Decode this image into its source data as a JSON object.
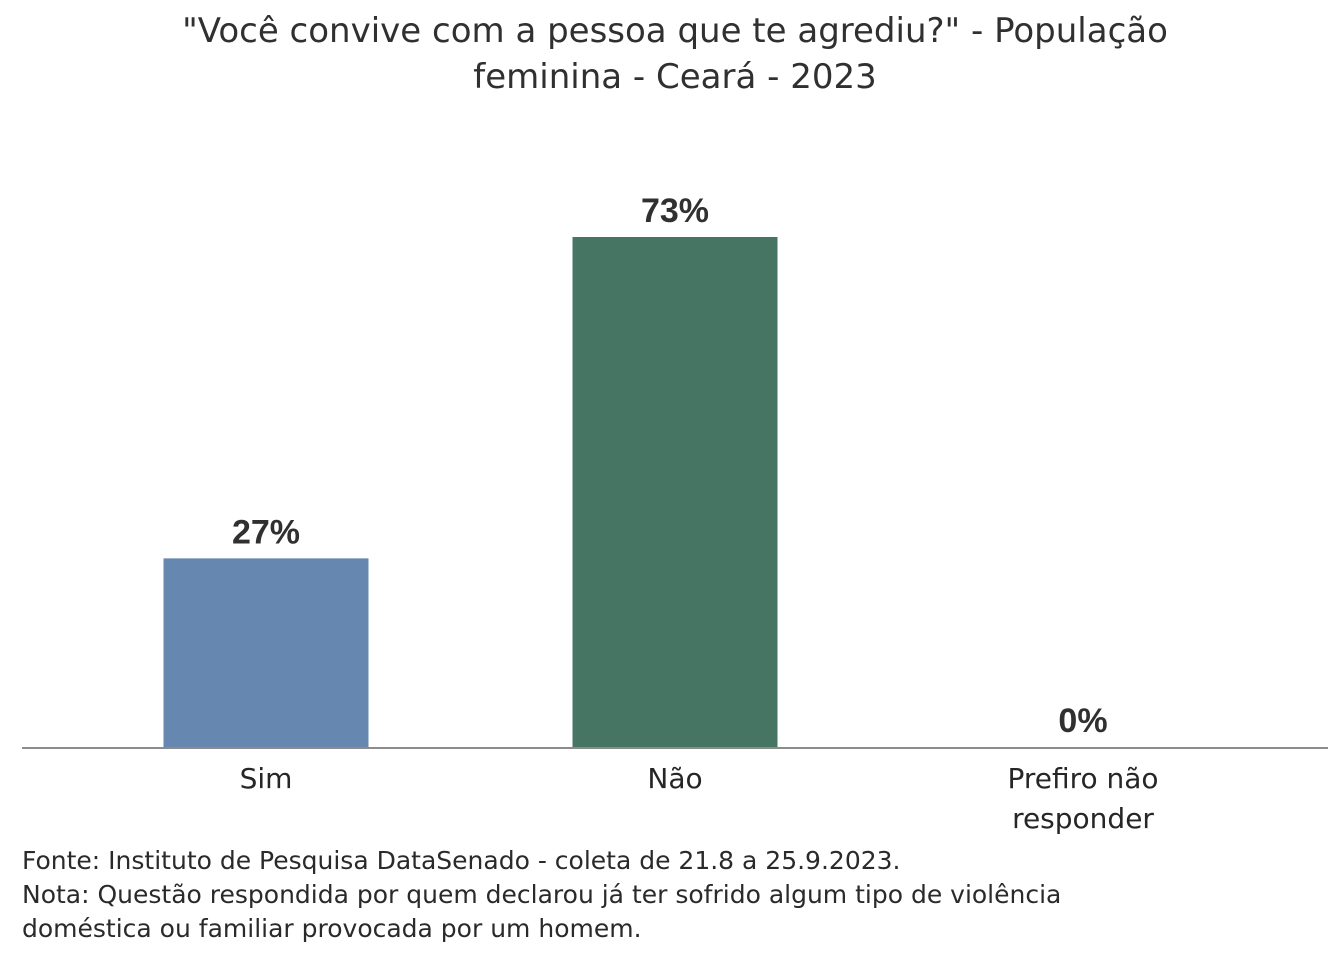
{
  "chart_data": {
    "type": "bar",
    "title": [
      "\"Você convive com a pessoa que te agrediu?\" - População",
      "feminina - Ceará - 2023"
    ],
    "categories": [
      "Sim",
      "Não",
      "Prefiro não responder"
    ],
    "category_lines": [
      [
        "Sim"
      ],
      [
        "Não"
      ],
      [
        "Prefiro não",
        "responder"
      ]
    ],
    "values": [
      27,
      73,
      0
    ],
    "value_labels": [
      "27%",
      "73%",
      "0%"
    ],
    "colors": [
      "#6688b0",
      "#467563",
      "#c0c0c0"
    ],
    "ylim": [
      0,
      100
    ],
    "grid": false,
    "legend": "none"
  },
  "notes": {
    "source": "Fonte: Instituto de Pesquisa DataSenado - coleta de 21.8 a 25.9.2023.",
    "note_line1": "Nota: Questão respondida por quem declarou já ter sofrido algum tipo de violência",
    "note_line2": "doméstica ou familiar provocada por um homem."
  }
}
